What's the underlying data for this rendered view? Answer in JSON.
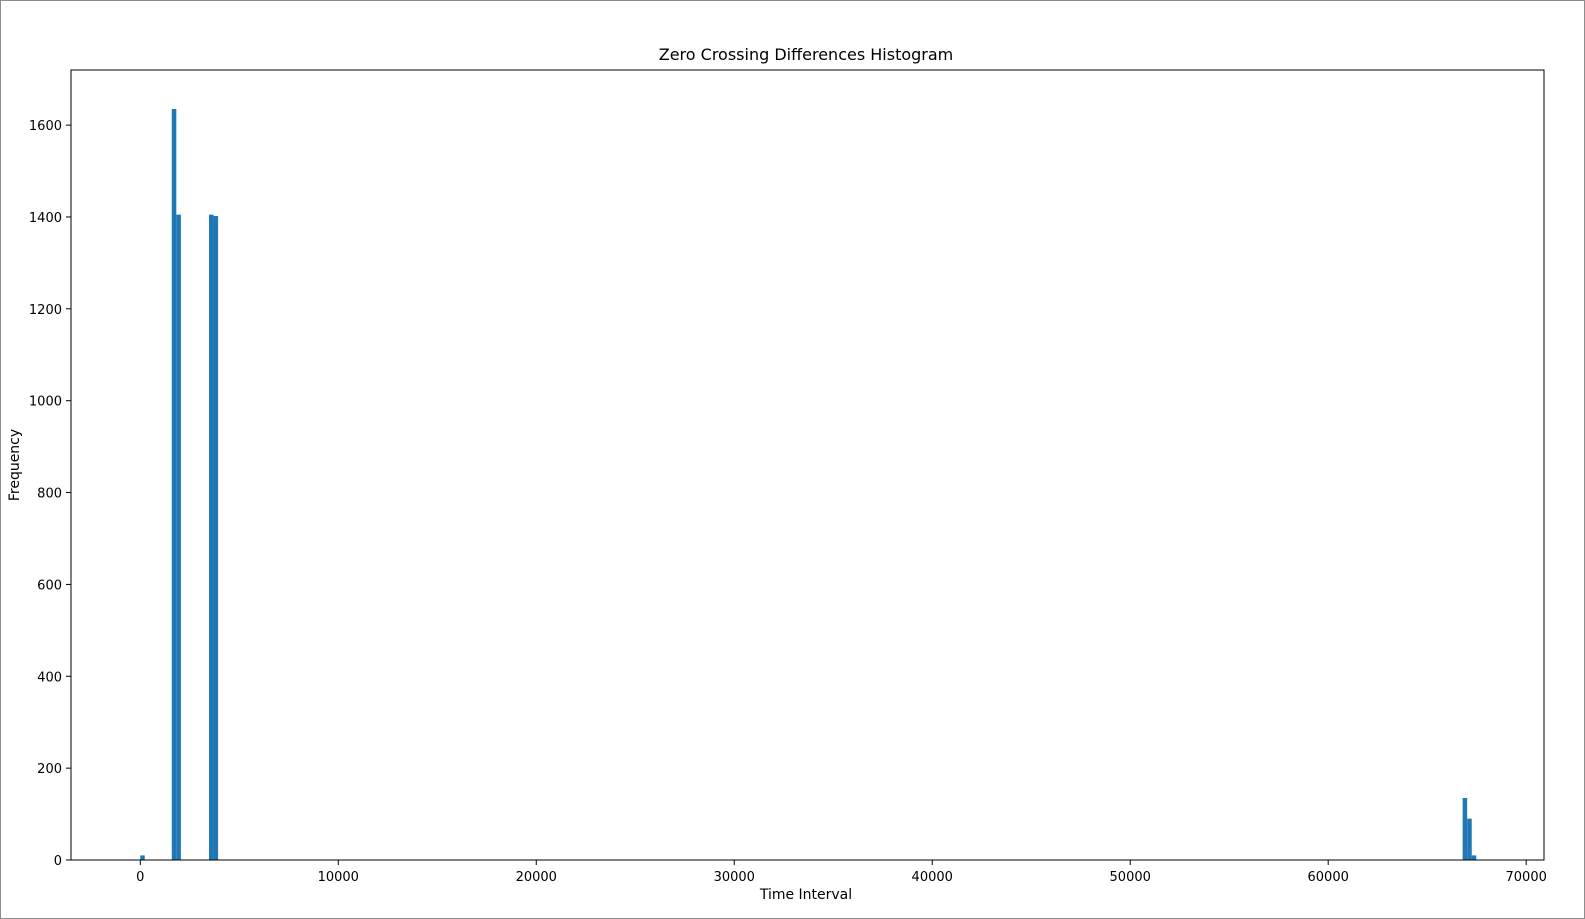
{
  "chart_data": {
    "type": "bar",
    "title": "Zero Crossing Differences Histogram",
    "xlabel": "Time Interval",
    "ylabel": "Frequency",
    "xlim": [
      -3500,
      70900
    ],
    "ylim": [
      0,
      1720
    ],
    "xticks": [
      0,
      10000,
      20000,
      30000,
      40000,
      50000,
      60000,
      70000
    ],
    "yticks": [
      0,
      200,
      400,
      600,
      800,
      1000,
      1200,
      1400,
      1600
    ],
    "grid": false,
    "bar_color": "#1f77b4",
    "bins": [
      {
        "x0": 0,
        "x1": 225,
        "value": 10
      },
      {
        "x0": 1590,
        "x1": 1820,
        "value": 1635
      },
      {
        "x0": 1820,
        "x1": 2050,
        "value": 1405
      },
      {
        "x0": 3470,
        "x1": 3700,
        "value": 1405
      },
      {
        "x0": 3700,
        "x1": 3930,
        "value": 1402
      },
      {
        "x0": 66790,
        "x1": 67020,
        "value": 135
      },
      {
        "x0": 67020,
        "x1": 67250,
        "value": 90
      },
      {
        "x0": 67250,
        "x1": 67480,
        "value": 10
      }
    ]
  }
}
